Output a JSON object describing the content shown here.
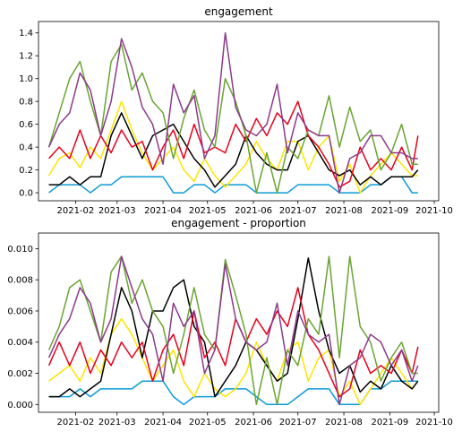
{
  "chart_data": [
    {
      "type": "line",
      "title": "engagement",
      "xlabel": "",
      "ylabel": "",
      "xlim": [
        "2021-01-07",
        "2021-10-04"
      ],
      "ylim": [
        -0.07,
        1.5
      ],
      "xticks": [
        "2021-02",
        "2021-03",
        "2021-04",
        "2021-05",
        "2021-06",
        "2021-07",
        "2021-08",
        "2021-09",
        "2021-10"
      ],
      "yticks": [
        0.0,
        0.2,
        0.4,
        0.6,
        0.8,
        1.0,
        1.2,
        1.4
      ],
      "ytick_labels": [
        "0.0",
        "0.2",
        "0.4",
        "0.6",
        "0.8",
        "1.0",
        "1.2",
        "1.4"
      ],
      "x": [
        "2021-01-14",
        "2021-01-21",
        "2021-01-28",
        "2021-02-04",
        "2021-02-11",
        "2021-02-18",
        "2021-02-25",
        "2021-03-04",
        "2021-03-11",
        "2021-03-18",
        "2021-03-25",
        "2021-04-01",
        "2021-04-08",
        "2021-04-15",
        "2021-04-22",
        "2021-04-29",
        "2021-05-06",
        "2021-05-13",
        "2021-05-20",
        "2021-05-27",
        "2021-06-03",
        "2021-06-10",
        "2021-06-17",
        "2021-06-24",
        "2021-07-01",
        "2021-07-08",
        "2021-07-15",
        "2021-07-22",
        "2021-07-29",
        "2021-08-05",
        "2021-08-12",
        "2021-08-19",
        "2021-08-26",
        "2021-09-02",
        "2021-09-09",
        "2021-09-16",
        "2021-09-20"
      ],
      "series": [
        {
          "name": "blue",
          "color": "#0a9bd6",
          "values": [
            0.0,
            0.07,
            0.07,
            0.07,
            0.0,
            0.07,
            0.07,
            0.14,
            0.14,
            0.14,
            0.14,
            0.14,
            0.0,
            0.0,
            0.07,
            0.07,
            0.0,
            0.07,
            0.07,
            0.07,
            0.0,
            0.0,
            0.0,
            0.0,
            0.07,
            0.07,
            0.07,
            0.07,
            0.0,
            0.0,
            0.0,
            0.07,
            0.07,
            0.14,
            0.14,
            0.0,
            0.0
          ]
        },
        {
          "name": "yellow",
          "color": "#ffe400",
          "values": [
            0.15,
            0.3,
            0.35,
            0.22,
            0.4,
            0.3,
            0.55,
            0.8,
            0.55,
            0.35,
            0.2,
            0.3,
            0.4,
            0.2,
            0.1,
            0.3,
            0.15,
            0.05,
            0.15,
            0.25,
            0.45,
            0.3,
            0.2,
            0.45,
            0.45,
            0.2,
            0.4,
            0.5,
            0.1,
            0.25,
            0.0,
            0.15,
            0.25,
            0.35,
            0.25,
            0.15,
            0.15
          ]
        },
        {
          "name": "black",
          "color": "#000000",
          "values": [
            0.07,
            0.07,
            0.14,
            0.07,
            0.14,
            0.14,
            0.5,
            0.7,
            0.5,
            0.3,
            0.5,
            0.55,
            0.6,
            0.45,
            0.3,
            0.2,
            0.05,
            0.15,
            0.25,
            0.5,
            0.35,
            0.25,
            0.2,
            0.2,
            0.45,
            0.5,
            0.35,
            0.2,
            0.15,
            0.2,
            0.07,
            0.14,
            0.07,
            0.14,
            0.14,
            0.14,
            0.2
          ]
        },
        {
          "name": "red",
          "color": "#e8001c",
          "values": [
            0.3,
            0.4,
            0.3,
            0.55,
            0.3,
            0.5,
            0.35,
            0.55,
            0.4,
            0.45,
            0.2,
            0.4,
            0.55,
            0.3,
            0.6,
            0.35,
            0.4,
            0.35,
            0.6,
            0.45,
            0.65,
            0.5,
            0.7,
            0.6,
            0.8,
            0.5,
            0.4,
            0.25,
            0.05,
            0.1,
            0.4,
            0.2,
            0.3,
            0.2,
            0.4,
            0.2,
            0.5
          ]
        },
        {
          "name": "green",
          "color": "#6aa431",
          "values": [
            0.4,
            0.7,
            1.0,
            1.15,
            0.8,
            0.5,
            1.15,
            1.3,
            0.9,
            1.05,
            0.8,
            0.7,
            0.3,
            0.65,
            0.9,
            0.55,
            0.4,
            1.0,
            0.8,
            0.5,
            0.0,
            0.35,
            0.0,
            0.4,
            0.3,
            0.55,
            0.5,
            0.85,
            0.4,
            0.75,
            0.45,
            0.55,
            0.2,
            0.35,
            0.6,
            0.25,
            0.25
          ]
        },
        {
          "name": "purple",
          "color": "#8b3a8a",
          "values": [
            0.4,
            0.6,
            0.7,
            1.05,
            0.9,
            0.5,
            0.8,
            1.35,
            1.1,
            0.75,
            0.6,
            0.25,
            0.95,
            0.7,
            0.85,
            0.3,
            0.5,
            1.4,
            0.75,
            0.55,
            0.5,
            0.6,
            0.95,
            0.35,
            0.7,
            0.55,
            0.5,
            0.5,
            0.0,
            0.3,
            0.35,
            0.5,
            0.5,
            0.35,
            0.35,
            0.3,
            0.3
          ]
        }
      ]
    },
    {
      "type": "line",
      "title": "engagement - proportion",
      "xlabel": "",
      "ylabel": "",
      "xlim": [
        "2021-01-07",
        "2021-10-04"
      ],
      "ylim": [
        -0.0005,
        0.011
      ],
      "xticks": [
        "2021-02",
        "2021-03",
        "2021-04",
        "2021-05",
        "2021-06",
        "2021-07",
        "2021-08",
        "2021-09",
        "2021-10"
      ],
      "yticks": [
        0.0,
        0.002,
        0.004,
        0.006,
        0.008,
        0.01
      ],
      "ytick_labels": [
        "0.000",
        "0.002",
        "0.004",
        "0.006",
        "0.008",
        "0.010"
      ],
      "x": [
        "2021-01-14",
        "2021-01-21",
        "2021-01-28",
        "2021-02-04",
        "2021-02-11",
        "2021-02-18",
        "2021-02-25",
        "2021-03-04",
        "2021-03-11",
        "2021-03-18",
        "2021-03-25",
        "2021-04-01",
        "2021-04-08",
        "2021-04-15",
        "2021-04-22",
        "2021-04-29",
        "2021-05-06",
        "2021-05-13",
        "2021-05-20",
        "2021-05-27",
        "2021-06-03",
        "2021-06-10",
        "2021-06-17",
        "2021-06-24",
        "2021-07-01",
        "2021-07-08",
        "2021-07-15",
        "2021-07-22",
        "2021-07-29",
        "2021-08-05",
        "2021-08-12",
        "2021-08-19",
        "2021-08-26",
        "2021-09-02",
        "2021-09-09",
        "2021-09-16",
        "2021-09-20"
      ],
      "series": [
        {
          "name": "blue",
          "color": "#0a9bd6",
          "values": [
            0.0005,
            0.0005,
            0.0005,
            0.001,
            0.0005,
            0.001,
            0.001,
            0.001,
            0.001,
            0.0015,
            0.0015,
            0.0015,
            0.0005,
            0.0,
            0.0005,
            0.0005,
            0.0005,
            0.001,
            0.001,
            0.001,
            0.0005,
            0.0,
            0.0,
            0.0,
            0.0005,
            0.001,
            0.001,
            0.001,
            0.0,
            0.0,
            0.0,
            0.001,
            0.001,
            0.0015,
            0.0015,
            0.0015,
            0.0015
          ]
        },
        {
          "name": "yellow",
          "color": "#ffe400",
          "values": [
            0.0015,
            0.002,
            0.0025,
            0.0015,
            0.003,
            0.002,
            0.0045,
            0.0055,
            0.0045,
            0.003,
            0.0015,
            0.0025,
            0.0035,
            0.0015,
            0.0005,
            0.002,
            0.001,
            0.0005,
            0.001,
            0.002,
            0.004,
            0.0025,
            0.0015,
            0.0035,
            0.004,
            0.0015,
            0.003,
            0.0035,
            0.0005,
            0.0015,
            0.0,
            0.001,
            0.002,
            0.003,
            0.002,
            0.001,
            0.0015
          ]
        },
        {
          "name": "black",
          "color": "#000000",
          "values": [
            0.0005,
            0.0005,
            0.001,
            0.0005,
            0.001,
            0.0015,
            0.0045,
            0.0075,
            0.006,
            0.003,
            0.006,
            0.006,
            0.0075,
            0.008,
            0.005,
            0.004,
            0.0005,
            0.0015,
            0.0025,
            0.004,
            0.0035,
            0.0025,
            0.0015,
            0.002,
            0.0055,
            0.0094,
            0.006,
            0.0035,
            0.002,
            0.0025,
            0.0008,
            0.0015,
            0.001,
            0.0025,
            0.0015,
            0.001,
            0.0015
          ]
        },
        {
          "name": "red",
          "color": "#e8001c",
          "values": [
            0.0025,
            0.004,
            0.0025,
            0.004,
            0.002,
            0.0035,
            0.0025,
            0.004,
            0.003,
            0.004,
            0.0015,
            0.0035,
            0.0045,
            0.0025,
            0.006,
            0.003,
            0.004,
            0.0025,
            0.0055,
            0.004,
            0.0055,
            0.0045,
            0.006,
            0.005,
            0.0075,
            0.0045,
            0.0035,
            0.002,
            0.0005,
            0.001,
            0.0035,
            0.002,
            0.0025,
            0.002,
            0.0035,
            0.002,
            0.0037
          ]
        },
        {
          "name": "green",
          "color": "#6aa431",
          "values": [
            0.0035,
            0.005,
            0.0075,
            0.008,
            0.006,
            0.004,
            0.0085,
            0.0095,
            0.0065,
            0.008,
            0.006,
            0.005,
            0.002,
            0.0045,
            0.0075,
            0.0045,
            0.0035,
            0.0093,
            0.007,
            0.0045,
            0.0,
            0.003,
            0.0,
            0.0035,
            0.0025,
            0.0055,
            0.0045,
            0.0095,
            0.003,
            0.0095,
            0.005,
            0.004,
            0.0015,
            0.003,
            0.004,
            0.002,
            0.002
          ]
        },
        {
          "name": "purple",
          "color": "#8b3a8a",
          "values": [
            0.003,
            0.0045,
            0.0055,
            0.0075,
            0.0065,
            0.004,
            0.0055,
            0.0095,
            0.0075,
            0.0055,
            0.0045,
            0.0015,
            0.0065,
            0.005,
            0.006,
            0.002,
            0.0035,
            0.009,
            0.0055,
            0.004,
            0.0035,
            0.004,
            0.0065,
            0.0025,
            0.006,
            0.0045,
            0.004,
            0.0045,
            0.0,
            0.0025,
            0.003,
            0.0045,
            0.004,
            0.0025,
            0.0035,
            0.0015,
            0.0025
          ]
        }
      ]
    }
  ]
}
